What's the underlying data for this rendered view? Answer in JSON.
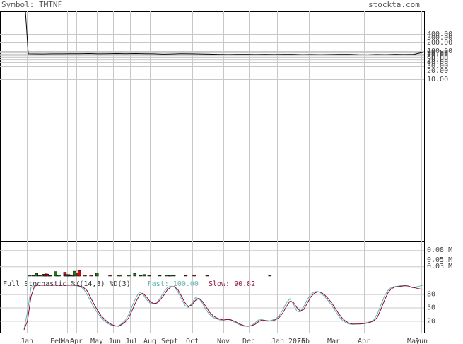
{
  "header": {
    "symbol_label": "Symbol: TMTNF",
    "site": "stockta.com"
  },
  "stochastic": {
    "title": "Full Stochastic %K(14,3) %D(3)",
    "fast_label": "Fast:",
    "fast_value": "100.00",
    "slow_label": "Slow:",
    "slow_value": "90.82",
    "fast_color": "#5fb3b3",
    "slow_color": "#8b0a3a"
  },
  "colors": {
    "price_line": "#000000",
    "grid": "#c8c8c8",
    "volume_up": "#1a7a1a",
    "volume_down": "#cc1111"
  },
  "chart_data": [
    {
      "type": "line",
      "panel": "price",
      "scale": "log",
      "y_ticks": [
        "400.00",
        "300.00",
        "200.00",
        "100.00",
        "90.00",
        "80.00",
        "70.00",
        "60.00",
        "50.00",
        "40.00",
        "30.00",
        "20.00",
        "10.00"
      ],
      "x_labels": [
        "Jan",
        "Feb",
        "Mar",
        "Apr",
        "May",
        "Jun",
        "Jul",
        "Aug",
        "Sept",
        "Oct",
        "Nov",
        "Dec",
        "Jan 2025",
        "Feb",
        "Mar",
        "Apr",
        "May",
        "Jun"
      ],
      "series": [
        {
          "values": [
            5000,
            80,
            79,
            80,
            80,
            81,
            81,
            82,
            80,
            81,
            82,
            81,
            82,
            81,
            80,
            78,
            79,
            81,
            80,
            79,
            78,
            76,
            75,
            76,
            76,
            75,
            76,
            75,
            76,
            76,
            74,
            75,
            74,
            75,
            76,
            76,
            74,
            73,
            75,
            74,
            76,
            75,
            76,
            90
          ]
        }
      ]
    },
    {
      "type": "bar",
      "panel": "volume",
      "y_ticks": [
        "0.08 M",
        "0.05 M",
        "0.03 M"
      ],
      "series": [
        {
          "values": [
            0.001,
            0.003,
            0.001,
            0.001,
            0.002,
            0.001,
            0.001,
            0.008,
            0.001,
            0.002,
            0.001,
            0.003,
            0.001,
            0.006,
            0.003,
            0.007,
            0.006,
            0.001,
            0.003,
            0.002,
            0.001,
            0.001,
            0.001,
            0.014,
            0.001,
            0.003,
            0.003,
            0.001,
            0.001,
            0.001,
            0.001,
            0.012,
            0.005,
            0.004,
            0.005,
            0.002,
            0.001,
            0.002,
            0.004,
            0.015,
            0.001,
            0.001,
            0.01,
            0.017,
            0.001,
            0.001,
            0.001,
            0.001,
            0.003,
            0.001,
            0.001,
            0.001,
            0.001,
            0.003,
            0.001,
            0.001,
            0.001,
            0.001,
            0.009,
            0.001,
            0.001,
            0.001,
            0.001,
            0.001,
            0.001,
            0.001,
            0.001,
            0.001,
            0.001,
            0.003,
            0.001,
            0.001,
            0.001,
            0.001,
            0.001,
            0.001,
            0.003,
            0.001,
            0.004,
            0.001,
            0.001,
            0.001,
            0.001,
            0.001,
            0.001,
            0.003,
            0.001,
            0.001,
            0.001,
            0.001,
            0.008,
            0.001,
            0.001,
            0.001,
            0.001,
            0.002,
            0.001,
            0.001,
            0.005,
            0.001,
            0.001,
            0.001,
            0.002,
            0.001,
            0.001,
            0.001,
            0.001,
            0.001,
            0.001,
            0.001,
            0.001,
            0.002,
            0.001,
            0.001,
            0.001,
            0.001,
            0.001,
            0.003,
            0.001,
            0.002,
            0.003,
            0.001,
            0.001,
            0.002,
            0.001,
            0.001,
            0.001,
            0.001,
            0.001,
            0.001,
            0.001,
            0.001,
            0.001,
            0.002,
            0.001,
            0.001,
            0.001,
            0.001,
            0.001,
            0.001,
            0.004,
            0.001,
            0.001,
            0.001,
            0.001,
            0.001,
            0.001,
            0.001,
            0.001,
            0.001,
            0.001,
            0.002,
            0.001,
            0.001,
            0.001,
            0.001,
            0.001,
            0.001,
            0.001,
            0.001,
            0.001,
            0.001,
            0.001,
            0.001,
            0.001,
            0.001,
            0.001,
            0.001,
            0.001,
            0.001,
            0.001,
            0.001,
            0.001,
            0.001,
            0.001,
            0.001,
            0.001,
            0.001,
            0.001,
            0.001,
            0.001,
            0.001,
            0.001,
            0.001,
            0.001,
            0.001,
            0.001,
            0.001,
            0.001,
            0.001,
            0.001,
            0.001,
            0.001,
            0.001,
            0.001,
            0.001,
            0.001,
            0.001,
            0.001,
            0.001,
            0.001,
            0.001,
            0.001,
            0.001,
            0.002,
            0.001,
            0.001,
            0.001,
            0.001,
            0.001,
            0.001,
            0.001,
            0.001,
            0.001,
            0.001,
            0.001,
            0.001,
            0.001,
            0.001,
            0.001,
            0.001,
            0.001,
            0.001,
            0.001,
            0.001,
            0.001,
            0.001,
            0.001,
            0.001,
            0.001,
            0.001,
            0.001,
            0.001,
            0.001,
            0.001,
            0.001,
            0.001,
            0.001,
            0.001,
            0.001,
            0.001,
            0.001,
            0.001,
            0.001,
            0.001,
            0.001,
            0.001,
            0.001,
            0.001,
            0.001,
            0.001,
            0.001,
            0.001,
            0.001,
            0.001,
            0.001,
            0.001,
            0.001,
            0.001,
            0.001,
            0.001,
            0.001,
            0.001,
            0.001,
            0.001,
            0.001,
            0.001,
            0.001,
            0.001,
            0.001,
            0.001,
            0.001,
            0.001,
            0.001,
            0.001,
            0.001,
            0.001,
            0.001,
            0.001,
            0.001,
            0.001,
            0.001,
            0.001,
            0.001,
            0.001,
            0.001,
            0.001,
            0.001,
            0.001,
            0.001,
            0.001,
            0.001,
            0.001,
            0.001,
            0.001,
            0.001,
            0.001,
            0.001,
            0.001,
            0.001,
            0.001,
            0.001,
            0.001,
            0.001,
            0.001,
            0.001,
            0.001,
            0.001,
            0.001,
            0.001,
            0.001,
            0.001,
            0.001,
            0.001,
            0.001,
            0.001,
            0.001,
            0.001,
            0.001,
            0.001,
            0.001,
            0.001,
            0.001,
            0.001,
            0.001,
            0.001,
            0.001,
            0.001,
            0.001,
            0.001,
            0.001,
            0.001,
            0.001
          ],
          "up": [
            true,
            true,
            false,
            true,
            false,
            true,
            true,
            true,
            false,
            true,
            false,
            false,
            true,
            true,
            false,
            false,
            false,
            true,
            true,
            false,
            true,
            true,
            false,
            true,
            true,
            false,
            true,
            true,
            true,
            false,
            false,
            false,
            false,
            true,
            true,
            true,
            true,
            true,
            false,
            true,
            true,
            true,
            false,
            false,
            false,
            true,
            true,
            true,
            false,
            true,
            true,
            false,
            true,
            false,
            true,
            false,
            true,
            false,
            true,
            true,
            true,
            true,
            false,
            true,
            true,
            true,
            true,
            false,
            true,
            false,
            true,
            false,
            true,
            false,
            false,
            true,
            false,
            true,
            true,
            true,
            false,
            false,
            true,
            true,
            true,
            true,
            false,
            true,
            false,
            true,
            true,
            false,
            false,
            false,
            true,
            true,
            false,
            false,
            true,
            true,
            true,
            false,
            false,
            false,
            false,
            true,
            false,
            true,
            false,
            true,
            false,
            true,
            false,
            true,
            true,
            false,
            true,
            true,
            false,
            true,
            true,
            true,
            false,
            true,
            false,
            false,
            true,
            false,
            false,
            true,
            true,
            true,
            true,
            false,
            true,
            false,
            true,
            true,
            false,
            true,
            false,
            false,
            true,
            false,
            false,
            false,
            true,
            false,
            false,
            true,
            true,
            false,
            false,
            false,
            false,
            true,
            true,
            true,
            false,
            false,
            true,
            false,
            true,
            true,
            true,
            true,
            true,
            true,
            false,
            true,
            true,
            false,
            true,
            false,
            false,
            true,
            false,
            false,
            false,
            false,
            false,
            true,
            false,
            true,
            true,
            false,
            true,
            false,
            true,
            true,
            false,
            true,
            true,
            false,
            true,
            false,
            false,
            false,
            true,
            true,
            true,
            true,
            false,
            false,
            false,
            false,
            false,
            true,
            false,
            true,
            false,
            true,
            false,
            false,
            false,
            true,
            true,
            false,
            false,
            true,
            true,
            false,
            false,
            false,
            false,
            true,
            false,
            true,
            true,
            false,
            false,
            true,
            true,
            false,
            false,
            false,
            false,
            false,
            false,
            false,
            true,
            true,
            true,
            true,
            false,
            true,
            true,
            true,
            false,
            false,
            true,
            false,
            true,
            false,
            true,
            false,
            true,
            true,
            true,
            false,
            true,
            false,
            true,
            true,
            false,
            true,
            true,
            false,
            true,
            true,
            false,
            false,
            true,
            false,
            true,
            false,
            false,
            true,
            false,
            false,
            false,
            true,
            true,
            false,
            false,
            false,
            false,
            false,
            true,
            false,
            false,
            true,
            true,
            false,
            false,
            true,
            false,
            true,
            true,
            true,
            false,
            true,
            true,
            true,
            true,
            false,
            false,
            true,
            false,
            true,
            true,
            false,
            true,
            false
          ]
        }
      ]
    },
    {
      "type": "line",
      "panel": "stochastic",
      "y_ticks": [
        "80",
        "50",
        "20"
      ],
      "ylim": [
        0,
        100
      ],
      "series": [
        {
          "name": "Fast",
          "values": [
            2,
            40,
            95,
            100,
            100,
            100,
            100,
            100,
            100,
            100,
            100,
            100,
            100,
            100,
            100,
            99,
            97,
            92,
            80,
            65,
            50,
            38,
            28,
            20,
            14,
            10,
            8,
            9,
            14,
            22,
            35,
            55,
            72,
            85,
            80,
            68,
            60,
            58,
            62,
            72,
            85,
            95,
            98,
            96,
            85,
            70,
            55,
            50,
            60,
            72,
            70,
            60,
            45,
            35,
            28,
            25,
            22,
            22,
            24,
            22,
            18,
            14,
            10,
            8,
            8,
            10,
            15,
            22,
            23,
            20,
            19,
            22,
            25,
            32,
            45,
            60,
            70,
            58,
            42,
            40,
            52,
            68,
            80,
            85,
            86,
            82,
            74,
            65,
            55,
            42,
            30,
            22,
            16,
            13,
            12,
            13,
            14,
            14,
            16,
            18,
            22,
            35,
            55,
            75,
            88,
            95,
            97,
            98,
            100,
            100,
            98,
            95,
            96,
            98,
            100
          ]
        },
        {
          "name": "Slow",
          "values": [
            0,
            20,
            75,
            98,
            100,
            100,
            100,
            100,
            100,
            100,
            100,
            100,
            100,
            100,
            100,
            100,
            98,
            95,
            88,
            73,
            58,
            44,
            32,
            24,
            17,
            12,
            9,
            8,
            12,
            18,
            28,
            45,
            63,
            78,
            82,
            74,
            64,
            59,
            60,
            68,
            78,
            90,
            96,
            97,
            90,
            76,
            61,
            52,
            56,
            66,
            71,
            64,
            52,
            40,
            32,
            27,
            24,
            22,
            23,
            23,
            20,
            16,
            12,
            9,
            8,
            9,
            12,
            18,
            22,
            21,
            20,
            20,
            23,
            28,
            38,
            52,
            64,
            62,
            50,
            42,
            46,
            60,
            74,
            82,
            85,
            84,
            78,
            70,
            60,
            48,
            36,
            26,
            19,
            15,
            13,
            13,
            13,
            14,
            15,
            17,
            20,
            28,
            45,
            65,
            82,
            92,
            96,
            97,
            98,
            99,
            98,
            95,
            94,
            92,
            90.82
          ]
        }
      ]
    }
  ]
}
